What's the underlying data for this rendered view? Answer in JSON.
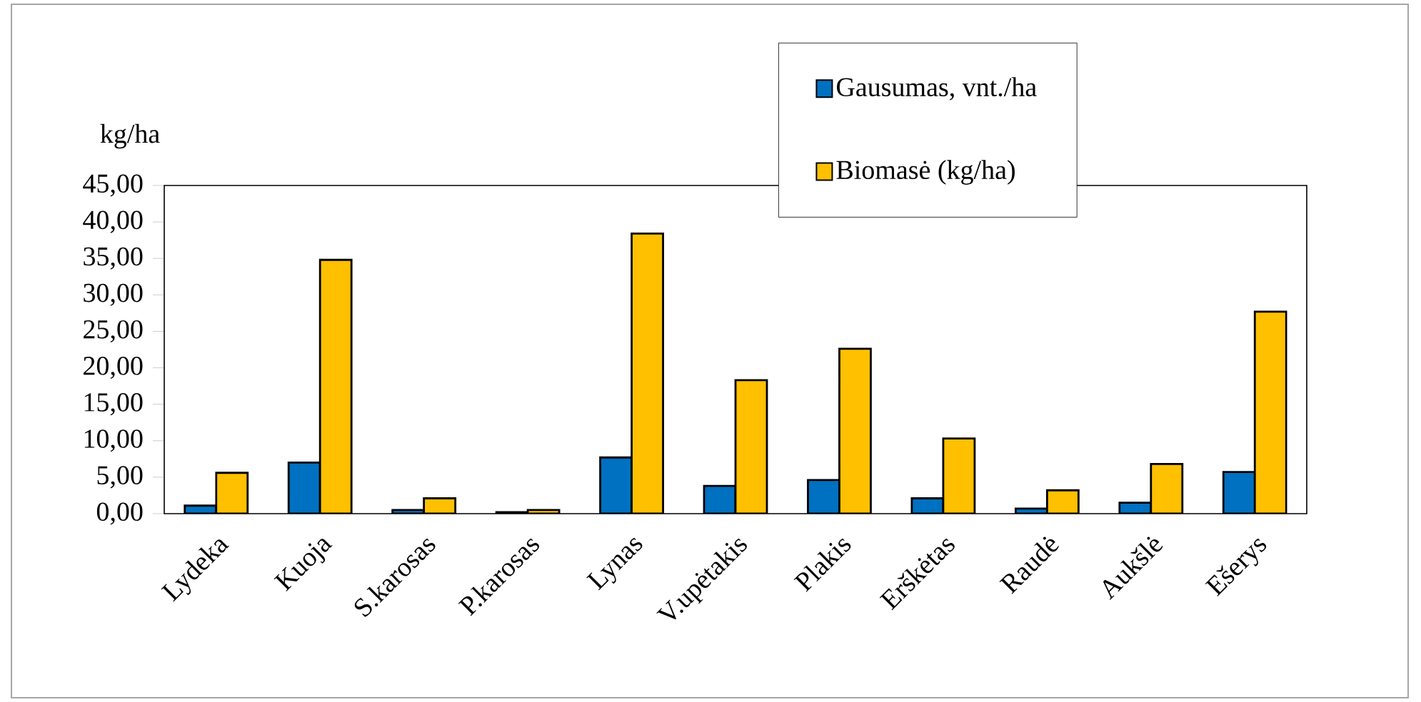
{
  "chart_data": {
    "type": "bar",
    "ylabel": "kg/ha",
    "categories": [
      "Lydeka",
      "Kuoja",
      "S.karosas",
      "P.karosas",
      "Lynas",
      "V.upėtakis",
      "Plakis",
      "Erškėtas",
      "Raudė",
      "Aukšlė",
      "Ešerys"
    ],
    "series": [
      {
        "name": "Gausumas, vnt./ha",
        "color": "#0070c0",
        "values": [
          1.1,
          7.0,
          0.5,
          0.2,
          7.7,
          3.8,
          4.6,
          2.1,
          0.7,
          1.5,
          5.7
        ]
      },
      {
        "name": "Biomasė (kg/ha)",
        "color": "#ffc000",
        "values": [
          5.6,
          34.8,
          2.1,
          0.5,
          38.4,
          18.3,
          22.6,
          10.3,
          3.2,
          6.8,
          27.7
        ]
      }
    ],
    "ylim": [
      0,
      45
    ],
    "yticks": [
      {
        "value": 0,
        "label": "0,00"
      },
      {
        "value": 5,
        "label": "5,00"
      },
      {
        "value": 10,
        "label": "10,00"
      },
      {
        "value": 15,
        "label": "15,00"
      },
      {
        "value": 20,
        "label": "20,00"
      },
      {
        "value": 25,
        "label": "25,00"
      },
      {
        "value": 30,
        "label": "30,00"
      },
      {
        "value": 35,
        "label": "35,00"
      },
      {
        "value": 40,
        "label": "40,00"
      },
      {
        "value": 45,
        "label": "45,00"
      }
    ],
    "legend": "top right"
  }
}
